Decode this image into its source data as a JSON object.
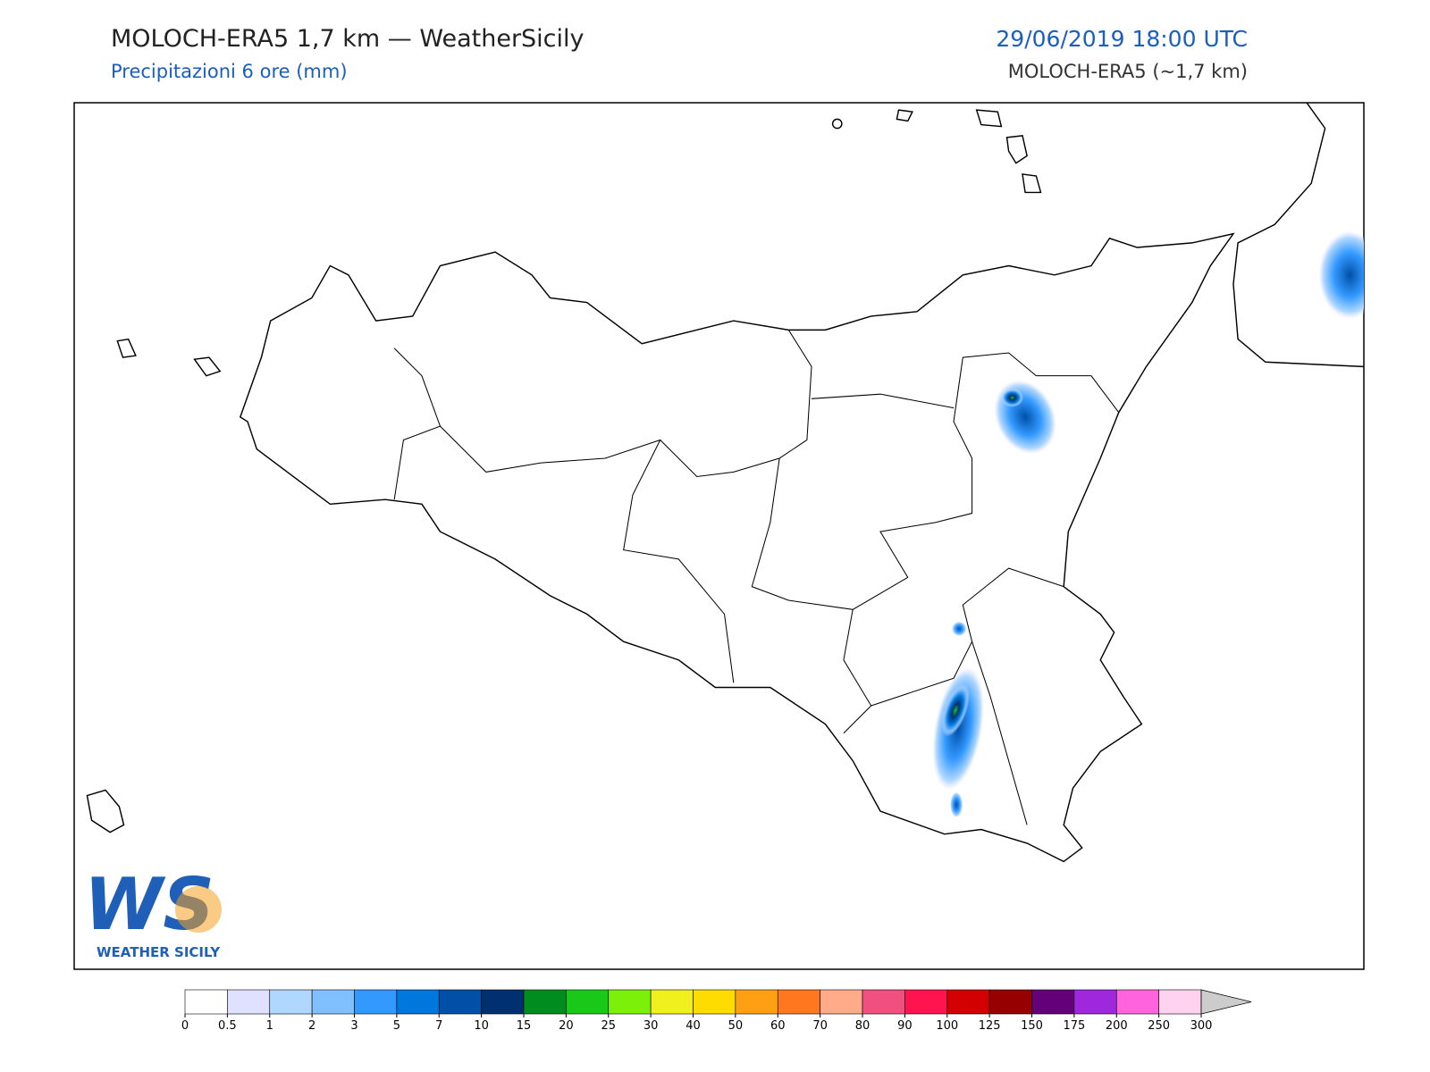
{
  "header": {
    "title": "MOLOCH-ERA5 1,7 km — WeatherSicily",
    "subtitle": "Precipitazioni 6 ore (mm)",
    "datetime": "29/06/2019 18:00 UTC",
    "model": "MOLOCH-ERA5 (~1,7 km)"
  },
  "logo": {
    "mark": "WS",
    "name": "WEATHER SICILY"
  },
  "colorbar": {
    "levels": [
      0,
      0.5,
      1,
      2,
      3,
      5,
      7,
      10,
      15,
      20,
      25,
      30,
      40,
      50,
      60,
      70,
      80,
      90,
      100,
      125,
      150,
      175,
      200,
      250,
      300
    ],
    "colors": [
      "#ffffff",
      "#e0e0ff",
      "#b0d8ff",
      "#80c0ff",
      "#3399ff",
      "#0077dd",
      "#0050a8",
      "#003070",
      "#008c1e",
      "#19c819",
      "#7df00a",
      "#f0f01e",
      "#ffdc00",
      "#ffa014",
      "#ff7820",
      "#ffaa88",
      "#f05080",
      "#ff1450",
      "#d20000",
      "#960000",
      "#640078",
      "#a028dc",
      "#ff64dc",
      "#ffd2f0"
    ],
    "extend_color": "#cccccc"
  }
}
